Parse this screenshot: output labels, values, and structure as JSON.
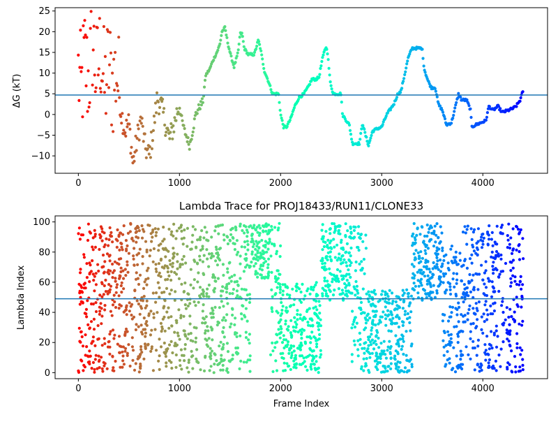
{
  "chart_data": [
    {
      "type": "scatter",
      "title": "",
      "xlabel": "",
      "ylabel": "ΔG (kT)",
      "xlim": [
        -230,
        4640
      ],
      "ylim": [
        -14.2,
        25.8
      ],
      "xticks": [
        0,
        1000,
        2000,
        3000,
        4000
      ],
      "yticks": [
        -10,
        -5,
        0,
        5,
        10,
        15,
        20,
        25
      ],
      "reference_line": 4.7,
      "colormap": "rainbow (reversed along frame index)",
      "trace": [
        [
          0,
          10
        ],
        [
          30,
          5
        ],
        [
          60,
          14
        ],
        [
          100,
          8
        ],
        [
          140,
          18
        ],
        [
          180,
          9
        ],
        [
          220,
          16
        ],
        [
          260,
          6
        ],
        [
          300,
          12
        ],
        [
          340,
          7
        ],
        [
          380,
          11
        ],
        [
          420,
          1
        ],
        [
          460,
          -4
        ],
        [
          500,
          -2
        ],
        [
          540,
          -12
        ],
        [
          580,
          -6
        ],
        [
          620,
          -1
        ],
        [
          660,
          -8
        ],
        [
          700,
          -10
        ],
        [
          740,
          -4
        ],
        [
          780,
          4
        ],
        [
          820,
          2
        ],
        [
          860,
          -2
        ],
        [
          900,
          -6
        ],
        [
          940,
          -3
        ],
        [
          980,
          1
        ],
        [
          1000,
          2
        ],
        [
          1020,
          -1
        ],
        [
          1050,
          -4
        ],
        [
          1080,
          -6
        ],
        [
          1100,
          -7.5
        ],
        [
          1130,
          -4
        ],
        [
          1160,
          0
        ],
        [
          1200,
          2
        ],
        [
          1230,
          3
        ],
        [
          1260,
          9.5
        ],
        [
          1300,
          11
        ],
        [
          1330,
          13
        ],
        [
          1370,
          15
        ],
        [
          1400,
          17
        ],
        [
          1420,
          20
        ],
        [
          1450,
          21
        ],
        [
          1480,
          17
        ],
        [
          1510,
          14
        ],
        [
          1540,
          11.5
        ],
        [
          1580,
          15
        ],
        [
          1600,
          19.5
        ],
        [
          1620,
          19.5
        ],
        [
          1640,
          16
        ],
        [
          1680,
          14.5
        ],
        [
          1740,
          14.5
        ],
        [
          1780,
          18
        ],
        [
          1800,
          16
        ],
        [
          1840,
          10.5
        ],
        [
          1880,
          8
        ],
        [
          1920,
          5
        ],
        [
          1980,
          5
        ],
        [
          2000,
          0
        ],
        [
          2030,
          -3
        ],
        [
          2060,
          -3
        ],
        [
          2100,
          -1
        ],
        [
          2140,
          2
        ],
        [
          2180,
          4
        ],
        [
          2230,
          5
        ],
        [
          2270,
          6.5
        ],
        [
          2310,
          8.5
        ],
        [
          2350,
          8.5
        ],
        [
          2380,
          9
        ],
        [
          2410,
          13
        ],
        [
          2440,
          16
        ],
        [
          2460,
          16
        ],
        [
          2490,
          8
        ],
        [
          2520,
          5
        ],
        [
          2600,
          5
        ],
        [
          2610,
          0
        ],
        [
          2680,
          -2.5
        ],
        [
          2710,
          -7
        ],
        [
          2780,
          -7
        ],
        [
          2810,
          -2
        ],
        [
          2840,
          -5
        ],
        [
          2870,
          -7.5
        ],
        [
          2910,
          -4
        ],
        [
          2950,
          -3.5
        ],
        [
          3000,
          -3
        ],
        [
          3050,
          0
        ],
        [
          3120,
          2.5
        ],
        [
          3160,
          5
        ],
        [
          3190,
          5.5
        ],
        [
          3230,
          10
        ],
        [
          3260,
          13.5
        ],
        [
          3300,
          16
        ],
        [
          3400,
          16
        ],
        [
          3420,
          11
        ],
        [
          3460,
          8
        ],
        [
          3490,
          6.5
        ],
        [
          3530,
          6.5
        ],
        [
          3560,
          2.5
        ],
        [
          3600,
          1
        ],
        [
          3640,
          -2.5
        ],
        [
          3690,
          -2
        ],
        [
          3730,
          2
        ],
        [
          3760,
          5
        ],
        [
          3790,
          3.5
        ],
        [
          3840,
          3.5
        ],
        [
          3880,
          1
        ],
        [
          3890,
          -3
        ],
        [
          3930,
          -2.5
        ],
        [
          3980,
          -2
        ],
        [
          4030,
          -1.5
        ],
        [
          4060,
          2
        ],
        [
          4100,
          1
        ],
        [
          4150,
          2
        ],
        [
          4190,
          0.5
        ],
        [
          4250,
          1
        ],
        [
          4300,
          1.5
        ],
        [
          4330,
          2
        ],
        [
          4370,
          3.5
        ],
        [
          4400,
          6
        ]
      ]
    },
    {
      "type": "scatter",
      "title": "Lambda Trace for PROJ18433/RUN11/CLONE33",
      "xlabel": "Frame Index",
      "ylabel": "Lambda Index",
      "xlim": [
        -230,
        4640
      ],
      "ylim": [
        -4,
        104
      ],
      "xticks": [
        0,
        1000,
        2000,
        3000,
        4000
      ],
      "yticks": [
        0,
        20,
        40,
        60,
        80,
        100
      ],
      "reference_line": 49,
      "colormap": "rainbow (reversed along frame index)",
      "segments": [
        [
          0,
          400,
          0,
          99
        ],
        [
          400,
          1000,
          0,
          99
        ],
        [
          1000,
          1500,
          0,
          99
        ],
        [
          1500,
          1700,
          0,
          99
        ],
        [
          1700,
          1900,
          62,
          99
        ],
        [
          1900,
          2000,
          0,
          99
        ],
        [
          2000,
          2400,
          0,
          60
        ],
        [
          2400,
          2700,
          48,
          99
        ],
        [
          2700,
          2850,
          0,
          99
        ],
        [
          2850,
          3300,
          0,
          55
        ],
        [
          3300,
          3600,
          48,
          99
        ],
        [
          3600,
          3800,
          0,
          85
        ],
        [
          3800,
          4000,
          0,
          99
        ],
        [
          4000,
          4400,
          0,
          99
        ]
      ]
    }
  ]
}
